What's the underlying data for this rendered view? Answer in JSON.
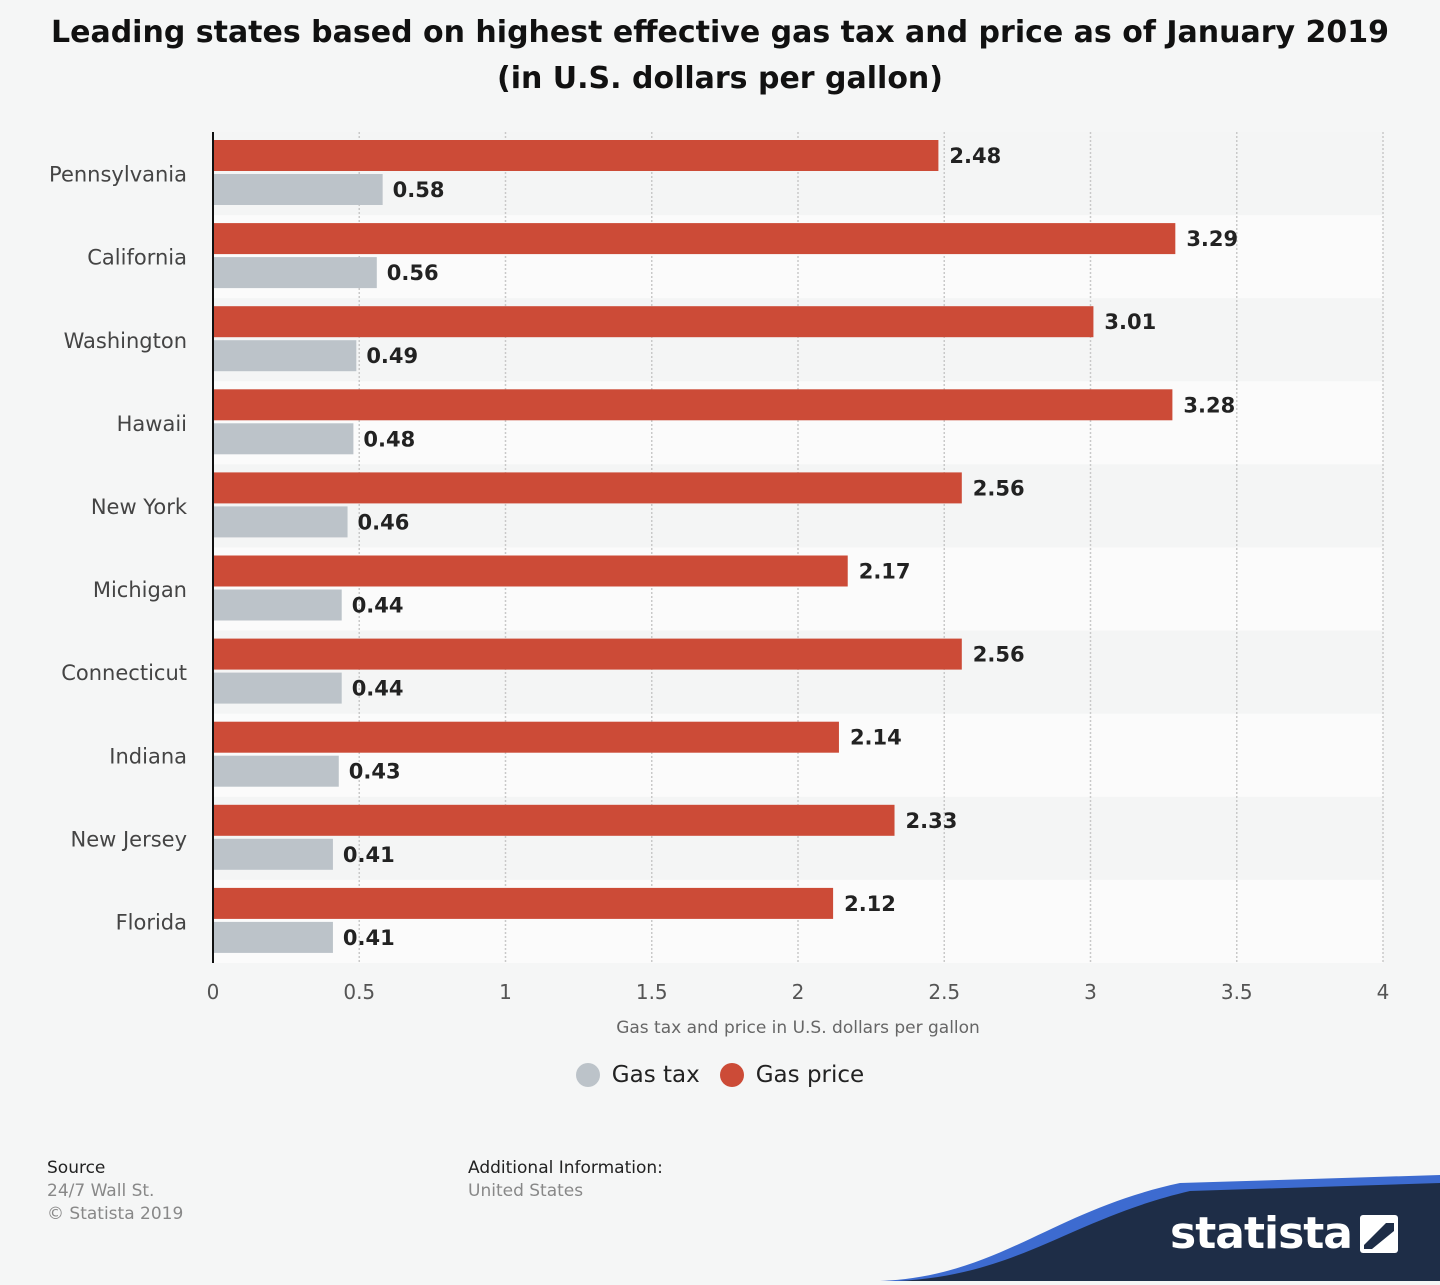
{
  "title_lines": [
    "Leading states based on highest effective gas tax and price as of January 2019",
    "(in U.S. dollars per gallon)"
  ],
  "chart_data": {
    "type": "bar",
    "orientation": "horizontal",
    "categories": [
      "Pennsylvania",
      "California",
      "Washington",
      "Hawaii",
      "New York",
      "Michigan",
      "Connecticut",
      "Indiana",
      "New Jersey",
      "Florida"
    ],
    "series": [
      {
        "name": "Gas price",
        "color": "#cc4b37",
        "values": [
          2.48,
          3.29,
          3.01,
          3.28,
          2.56,
          2.17,
          2.56,
          2.14,
          2.33,
          2.12
        ]
      },
      {
        "name": "Gas tax",
        "color": "#bcc3c9",
        "values": [
          0.58,
          0.56,
          0.49,
          0.48,
          0.46,
          0.44,
          0.44,
          0.43,
          0.41,
          0.41
        ]
      }
    ],
    "data_labels": [
      [
        "2.48",
        "3.29",
        "3.01",
        "3.28",
        "2.56",
        "2.17",
        "2.56",
        "2.14",
        "2.33",
        "2.12"
      ],
      [
        "0.58",
        "0.56",
        "0.49",
        "0.48",
        "0.46",
        "0.44",
        "0.44",
        "0.43",
        "0.41",
        "0.41"
      ]
    ],
    "xlim": [
      0,
      4
    ],
    "x_ticks": [
      "0",
      "0.5",
      "1",
      "1.5",
      "2",
      "2.5",
      "3",
      "3.5",
      "4"
    ],
    "xlabel": "Gas tax and price in U.S. dollars per gallon",
    "grid": true,
    "legend": {
      "placement": "bottom",
      "items": [
        {
          "name": "Gas tax",
          "color": "#bcc3c9"
        },
        {
          "name": "Gas price",
          "color": "#cc4b37"
        }
      ]
    }
  },
  "footer": {
    "source_heading": "Source",
    "source_lines": [
      "24/7 Wall St.",
      "© Statista 2019"
    ],
    "info_heading": "Additional Information:",
    "info_lines": [
      "United States"
    ]
  },
  "brand": {
    "name": "statista",
    "wave_color": "#1e2d47",
    "accent_color": "#3d6bd0"
  }
}
